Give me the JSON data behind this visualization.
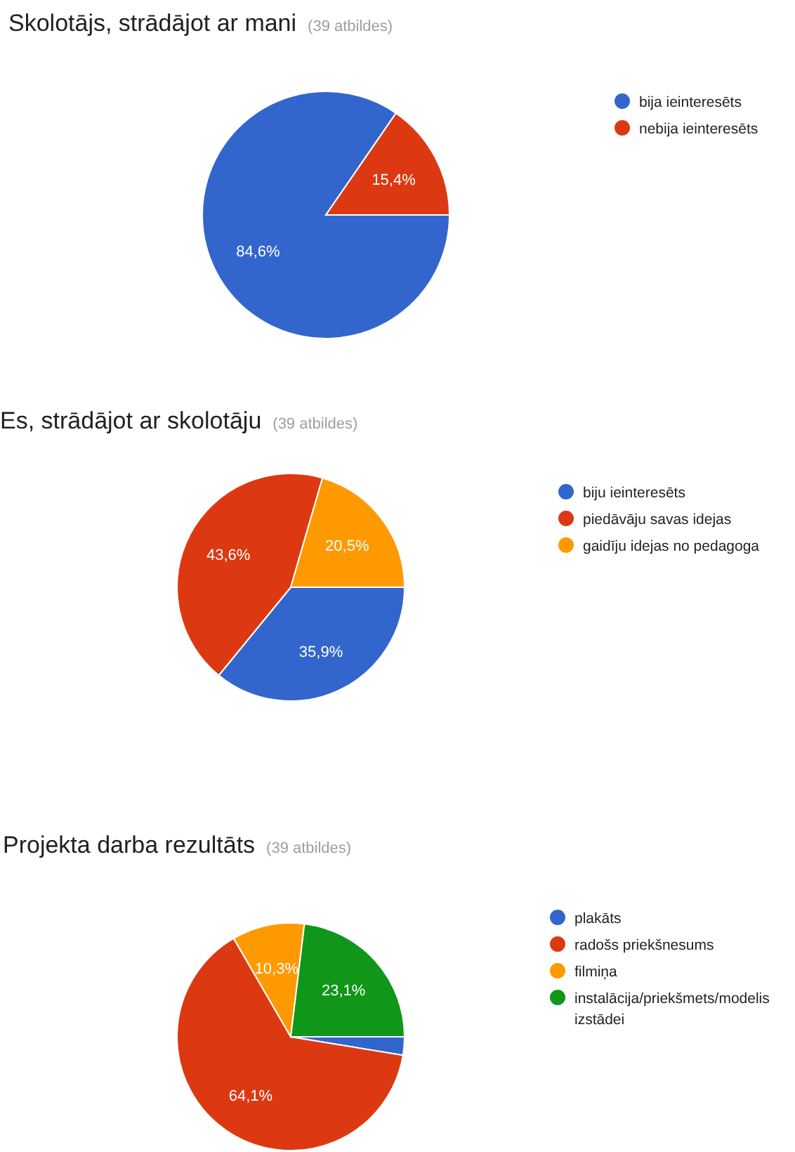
{
  "chart_data": [
    {
      "type": "pie",
      "title": "Skolotājs, strādājot ar mani",
      "subtitle": "(39 atbildes)",
      "categories": [
        "bija ieinteresēts",
        "nebija ieinteresēts"
      ],
      "values": [
        84.6,
        15.4
      ],
      "colors": [
        "#3366cc",
        "#dc3912"
      ],
      "value_labels": [
        "84,6%",
        "15,4%"
      ],
      "legend": "right"
    },
    {
      "type": "pie",
      "title": "Es, strādājot ar skolotāju",
      "subtitle": "(39 atbildes)",
      "categories": [
        "biju ieinteresēts",
        "piedāvāju savas idejas",
        "gaidīju idejas no pedagoga"
      ],
      "values": [
        35.9,
        43.6,
        20.5
      ],
      "colors": [
        "#3366cc",
        "#dc3912",
        "#ff9900"
      ],
      "value_labels": [
        "35,9%",
        "43,6%",
        "20,5%"
      ],
      "legend": "right"
    },
    {
      "type": "pie",
      "title": "Projekta darba rezultāts",
      "subtitle": "(39 atbildes)",
      "categories": [
        "plakāts",
        "radošs priekšnesums",
        "filmiņa",
        "instalācija/priekšmets/modelis izstādei"
      ],
      "values": [
        2.6,
        64.1,
        10.3,
        23.1
      ],
      "colors": [
        "#3366cc",
        "#dc3912",
        "#ff9900",
        "#109618"
      ],
      "value_labels": [
        null,
        "64,1%",
        "10,3%",
        "23,1%"
      ],
      "legend": "right"
    }
  ]
}
